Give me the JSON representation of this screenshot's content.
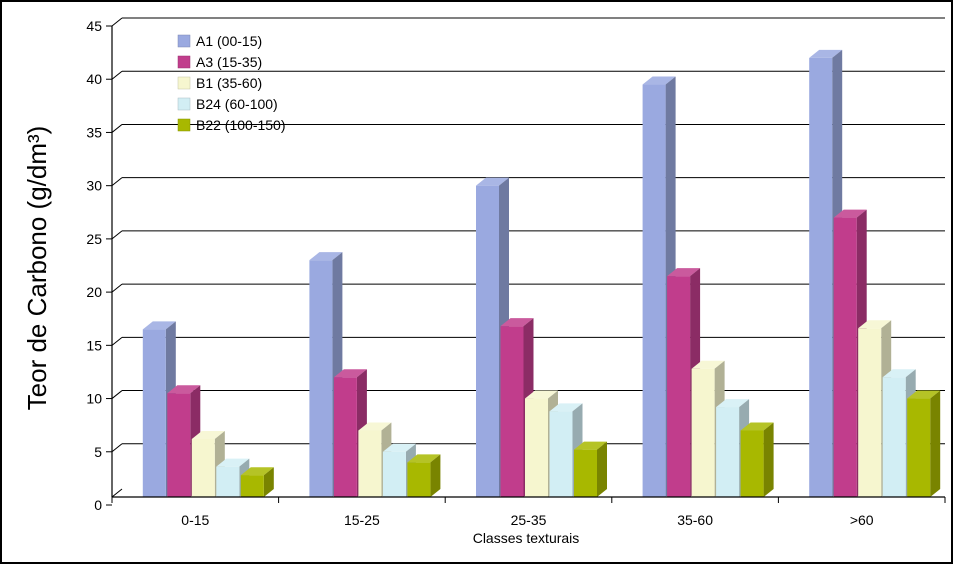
{
  "chart_data": {
    "type": "bar",
    "style": "3d-clustered",
    "categories": [
      "0-15",
      "15-25",
      "25-35",
      "35-60",
      ">60"
    ],
    "series": [
      {
        "name": "A1 (00-15)",
        "color": "#9aa9e0",
        "values": [
          16.5,
          23,
          30,
          39.5,
          42
        ]
      },
      {
        "name": "A3 (15-35)",
        "color": "#c13d8c",
        "values": [
          10.5,
          12,
          16.8,
          21.5,
          27
        ]
      },
      {
        "name": "B1 (35-60)",
        "color": "#f6f6cf",
        "values": [
          6.2,
          7,
          10,
          12.8,
          16.6
        ]
      },
      {
        "name": "B24 (60-100)",
        "color": "#d2eef4",
        "values": [
          3.6,
          5,
          8.8,
          9.2,
          12
        ]
      },
      {
        "name": "B22 (100-150)",
        "color": "#a8b800",
        "values": [
          2.8,
          4,
          5.2,
          7,
          10
        ]
      }
    ],
    "ylabel": "Teor de Carbono (g/dm³)",
    "xlabel": "Classes texturais",
    "ylim": [
      0,
      45
    ],
    "yticks": [
      0,
      5,
      10,
      15,
      20,
      25,
      30,
      35,
      40,
      45
    ],
    "grid": true,
    "legend_position": "top-left"
  }
}
